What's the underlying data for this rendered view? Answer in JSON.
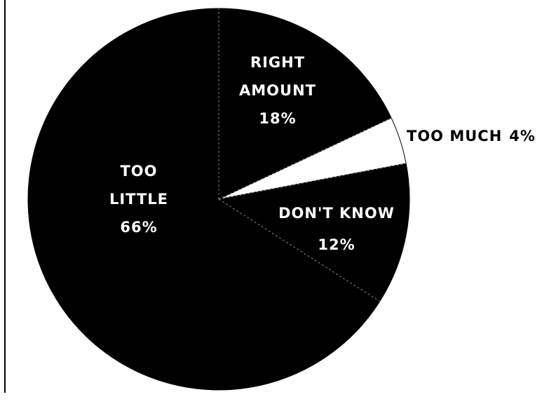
{
  "chart_data": {
    "type": "pie",
    "categories": [
      "RIGHT AMOUNT",
      "TOO MUCH",
      "DON'T KNOW",
      "TOO LITTLE"
    ],
    "values": [
      18,
      4,
      12,
      66
    ],
    "value_labels": [
      "18%",
      "4%",
      "12%",
      "66%"
    ],
    "colors": [
      "#000000",
      "#ffffff",
      "#000000",
      "#000000"
    ]
  }
}
